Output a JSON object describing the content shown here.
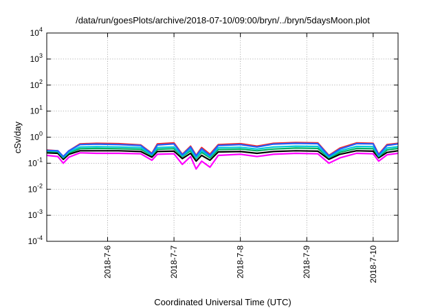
{
  "chart_data": {
    "type": "line",
    "title": "/data/run/goesPlots/archive/2018-07-10/09:00/bryn/../bryn/5daysMoon.plot",
    "xlabel": "Coordinated Universal Time (UTC)",
    "ylabel": "cSv/day",
    "yscale": "log",
    "ylim": [
      0.0001,
      10000
    ],
    "xlim": [
      "2018-07-05T02:00",
      "2018-07-10T09:00"
    ],
    "x_ticks": [
      "2018-7-6",
      "2018-7-7",
      "2018-7-8",
      "2018-7-9",
      "2018-7-10"
    ],
    "y_ticks": [
      {
        "value": 10000,
        "base": "10",
        "exp": "4"
      },
      {
        "value": 1000,
        "base": "10",
        "exp": "3"
      },
      {
        "value": 100,
        "base": "10",
        "exp": "2"
      },
      {
        "value": 10,
        "base": "10",
        "exp": "1"
      },
      {
        "value": 1,
        "base": "10",
        "exp": "0"
      },
      {
        "value": 0.1,
        "base": "10",
        "exp": "-1"
      },
      {
        "value": 0.01,
        "base": "10",
        "exp": "-2"
      },
      {
        "value": 0.001,
        "base": "10",
        "exp": "-3"
      },
      {
        "value": 0.0001,
        "base": "10",
        "exp": "-4"
      }
    ],
    "grid": true,
    "legend": "none",
    "series": [
      {
        "color": "#ff00ff",
        "values": [
          {
            "x": "2018-07-05T02:00",
            "y": 0.2
          },
          {
            "x": "2018-07-05T06:00",
            "y": 0.18
          },
          {
            "x": "2018-07-05T08:00",
            "y": 0.1
          },
          {
            "x": "2018-07-05T10:00",
            "y": 0.17
          },
          {
            "x": "2018-07-05T14:00",
            "y": 0.25
          },
          {
            "x": "2018-07-05T20:00",
            "y": 0.24
          },
          {
            "x": "2018-07-06T04:00",
            "y": 0.24
          },
          {
            "x": "2018-07-06T12:00",
            "y": 0.23
          },
          {
            "x": "2018-07-06T16:00",
            "y": 0.13
          },
          {
            "x": "2018-07-06T18:00",
            "y": 0.22
          },
          {
            "x": "2018-07-07T00:00",
            "y": 0.23
          },
          {
            "x": "2018-07-07T03:00",
            "y": 0.09
          },
          {
            "x": "2018-07-07T06:00",
            "y": 0.18
          },
          {
            "x": "2018-07-07T08:00",
            "y": 0.06
          },
          {
            "x": "2018-07-07T10:00",
            "y": 0.12
          },
          {
            "x": "2018-07-07T13:00",
            "y": 0.07
          },
          {
            "x": "2018-07-07T16:00",
            "y": 0.2
          },
          {
            "x": "2018-07-08T00:00",
            "y": 0.22
          },
          {
            "x": "2018-07-08T06:00",
            "y": 0.18
          },
          {
            "x": "2018-07-08T12:00",
            "y": 0.22
          },
          {
            "x": "2018-07-08T20:00",
            "y": 0.24
          },
          {
            "x": "2018-07-09T04:00",
            "y": 0.23
          },
          {
            "x": "2018-07-09T08:00",
            "y": 0.1
          },
          {
            "x": "2018-07-09T12:00",
            "y": 0.16
          },
          {
            "x": "2018-07-09T18:00",
            "y": 0.24
          },
          {
            "x": "2018-07-10T00:00",
            "y": 0.23
          },
          {
            "x": "2018-07-10T02:00",
            "y": 0.12
          },
          {
            "x": "2018-07-10T05:00",
            "y": 0.21
          },
          {
            "x": "2018-07-10T09:00",
            "y": 0.24
          }
        ]
      },
      {
        "color": "#ff2020",
        "values": [
          {
            "x": "2018-07-05T02:00",
            "y": 0.32
          },
          {
            "x": "2018-07-05T06:00",
            "y": 0.3
          },
          {
            "x": "2018-07-05T08:00",
            "y": 0.18
          },
          {
            "x": "2018-07-05T10:00",
            "y": 0.3
          },
          {
            "x": "2018-07-05T14:00",
            "y": 0.55
          },
          {
            "x": "2018-07-05T20:00",
            "y": 0.58
          },
          {
            "x": "2018-07-06T04:00",
            "y": 0.56
          },
          {
            "x": "2018-07-06T12:00",
            "y": 0.5
          },
          {
            "x": "2018-07-06T16:00",
            "y": 0.24
          },
          {
            "x": "2018-07-06T18:00",
            "y": 0.55
          },
          {
            "x": "2018-07-07T00:00",
            "y": 0.6
          },
          {
            "x": "2018-07-07T03:00",
            "y": 0.22
          },
          {
            "x": "2018-07-07T06:00",
            "y": 0.45
          },
          {
            "x": "2018-07-07T08:00",
            "y": 0.2
          },
          {
            "x": "2018-07-07T10:00",
            "y": 0.4
          },
          {
            "x": "2018-07-07T13:00",
            "y": 0.22
          },
          {
            "x": "2018-07-07T16:00",
            "y": 0.52
          },
          {
            "x": "2018-07-08T00:00",
            "y": 0.56
          },
          {
            "x": "2018-07-08T06:00",
            "y": 0.45
          },
          {
            "x": "2018-07-08T12:00",
            "y": 0.58
          },
          {
            "x": "2018-07-08T20:00",
            "y": 0.62
          },
          {
            "x": "2018-07-09T04:00",
            "y": 0.6
          },
          {
            "x": "2018-07-09T08:00",
            "y": 0.2
          },
          {
            "x": "2018-07-09T12:00",
            "y": 0.38
          },
          {
            "x": "2018-07-09T18:00",
            "y": 0.6
          },
          {
            "x": "2018-07-10T00:00",
            "y": 0.58
          },
          {
            "x": "2018-07-10T02:00",
            "y": 0.22
          },
          {
            "x": "2018-07-10T05:00",
            "y": 0.52
          },
          {
            "x": "2018-07-10T09:00",
            "y": 0.58
          }
        ]
      },
      {
        "color": "#000000",
        "values": [
          {
            "x": "2018-07-05T02:00",
            "y": 0.25
          },
          {
            "x": "2018-07-05T06:00",
            "y": 0.24
          },
          {
            "x": "2018-07-05T08:00",
            "y": 0.14
          },
          {
            "x": "2018-07-05T10:00",
            "y": 0.22
          },
          {
            "x": "2018-07-05T14:00",
            "y": 0.3
          },
          {
            "x": "2018-07-05T20:00",
            "y": 0.3
          },
          {
            "x": "2018-07-06T04:00",
            "y": 0.3
          },
          {
            "x": "2018-07-06T12:00",
            "y": 0.28
          },
          {
            "x": "2018-07-06T16:00",
            "y": 0.17
          },
          {
            "x": "2018-07-06T18:00",
            "y": 0.28
          },
          {
            "x": "2018-07-07T00:00",
            "y": 0.29
          },
          {
            "x": "2018-07-07T03:00",
            "y": 0.15
          },
          {
            "x": "2018-07-07T06:00",
            "y": 0.24
          },
          {
            "x": "2018-07-07T08:00",
            "y": 0.12
          },
          {
            "x": "2018-07-07T10:00",
            "y": 0.2
          },
          {
            "x": "2018-07-07T13:00",
            "y": 0.13
          },
          {
            "x": "2018-07-07T16:00",
            "y": 0.27
          },
          {
            "x": "2018-07-08T00:00",
            "y": 0.28
          },
          {
            "x": "2018-07-08T06:00",
            "y": 0.24
          },
          {
            "x": "2018-07-08T12:00",
            "y": 0.28
          },
          {
            "x": "2018-07-08T20:00",
            "y": 0.3
          },
          {
            "x": "2018-07-09T04:00",
            "y": 0.29
          },
          {
            "x": "2018-07-09T08:00",
            "y": 0.14
          },
          {
            "x": "2018-07-09T12:00",
            "y": 0.22
          },
          {
            "x": "2018-07-09T18:00",
            "y": 0.3
          },
          {
            "x": "2018-07-10T00:00",
            "y": 0.29
          },
          {
            "x": "2018-07-10T02:00",
            "y": 0.16
          },
          {
            "x": "2018-07-10T05:00",
            "y": 0.26
          },
          {
            "x": "2018-07-10T09:00",
            "y": 0.3
          }
        ]
      },
      {
        "color": "#00b060",
        "values": [
          {
            "x": "2018-07-05T02:00",
            "y": 0.28
          },
          {
            "x": "2018-07-05T06:00",
            "y": 0.27
          },
          {
            "x": "2018-07-05T08:00",
            "y": 0.16
          },
          {
            "x": "2018-07-05T10:00",
            "y": 0.25
          },
          {
            "x": "2018-07-05T14:00",
            "y": 0.36
          },
          {
            "x": "2018-07-05T20:00",
            "y": 0.37
          },
          {
            "x": "2018-07-06T04:00",
            "y": 0.36
          },
          {
            "x": "2018-07-06T12:00",
            "y": 0.34
          },
          {
            "x": "2018-07-06T16:00",
            "y": 0.2
          },
          {
            "x": "2018-07-06T18:00",
            "y": 0.34
          },
          {
            "x": "2018-07-07T00:00",
            "y": 0.36
          },
          {
            "x": "2018-07-07T03:00",
            "y": 0.18
          },
          {
            "x": "2018-07-07T06:00",
            "y": 0.3
          },
          {
            "x": "2018-07-07T08:00",
            "y": 0.15
          },
          {
            "x": "2018-07-07T10:00",
            "y": 0.26
          },
          {
            "x": "2018-07-07T13:00",
            "y": 0.16
          },
          {
            "x": "2018-07-07T16:00",
            "y": 0.33
          },
          {
            "x": "2018-07-08T00:00",
            "y": 0.35
          },
          {
            "x": "2018-07-08T06:00",
            "y": 0.3
          },
          {
            "x": "2018-07-08T12:00",
            "y": 0.35
          },
          {
            "x": "2018-07-08T20:00",
            "y": 0.38
          },
          {
            "x": "2018-07-09T04:00",
            "y": 0.37
          },
          {
            "x": "2018-07-09T08:00",
            "y": 0.16
          },
          {
            "x": "2018-07-09T12:00",
            "y": 0.26
          },
          {
            "x": "2018-07-09T18:00",
            "y": 0.37
          },
          {
            "x": "2018-07-10T00:00",
            "y": 0.36
          },
          {
            "x": "2018-07-10T02:00",
            "y": 0.18
          },
          {
            "x": "2018-07-10T05:00",
            "y": 0.32
          },
          {
            "x": "2018-07-10T09:00",
            "y": 0.37
          }
        ]
      },
      {
        "color": "#00c8d8",
        "values": [
          {
            "x": "2018-07-05T02:00",
            "y": 0.3
          },
          {
            "x": "2018-07-05T06:00",
            "y": 0.29
          },
          {
            "x": "2018-07-05T08:00",
            "y": 0.17
          },
          {
            "x": "2018-07-05T10:00",
            "y": 0.27
          },
          {
            "x": "2018-07-05T14:00",
            "y": 0.42
          },
          {
            "x": "2018-07-05T20:00",
            "y": 0.43
          },
          {
            "x": "2018-07-06T04:00",
            "y": 0.42
          },
          {
            "x": "2018-07-06T12:00",
            "y": 0.4
          },
          {
            "x": "2018-07-06T16:00",
            "y": 0.21
          },
          {
            "x": "2018-07-06T18:00",
            "y": 0.4
          },
          {
            "x": "2018-07-07T00:00",
            "y": 0.42
          },
          {
            "x": "2018-07-07T03:00",
            "y": 0.19
          },
          {
            "x": "2018-07-07T06:00",
            "y": 0.35
          },
          {
            "x": "2018-07-07T08:00",
            "y": 0.16
          },
          {
            "x": "2018-07-07T10:00",
            "y": 0.3
          },
          {
            "x": "2018-07-07T13:00",
            "y": 0.18
          },
          {
            "x": "2018-07-07T16:00",
            "y": 0.39
          },
          {
            "x": "2018-07-08T00:00",
            "y": 0.41
          },
          {
            "x": "2018-07-08T06:00",
            "y": 0.35
          },
          {
            "x": "2018-07-08T12:00",
            "y": 0.42
          },
          {
            "x": "2018-07-08T20:00",
            "y": 0.45
          },
          {
            "x": "2018-07-09T04:00",
            "y": 0.44
          },
          {
            "x": "2018-07-09T08:00",
            "y": 0.17
          },
          {
            "x": "2018-07-09T12:00",
            "y": 0.3
          },
          {
            "x": "2018-07-09T18:00",
            "y": 0.44
          },
          {
            "x": "2018-07-10T00:00",
            "y": 0.43
          },
          {
            "x": "2018-07-10T02:00",
            "y": 0.19
          },
          {
            "x": "2018-07-10T05:00",
            "y": 0.38
          },
          {
            "x": "2018-07-10T09:00",
            "y": 0.43
          }
        ]
      },
      {
        "color": "#2060ff",
        "values": [
          {
            "x": "2018-07-05T02:00",
            "y": 0.31
          },
          {
            "x": "2018-07-05T06:00",
            "y": 0.3
          },
          {
            "x": "2018-07-05T08:00",
            "y": 0.18
          },
          {
            "x": "2018-07-05T10:00",
            "y": 0.3
          },
          {
            "x": "2018-07-05T14:00",
            "y": 0.52
          },
          {
            "x": "2018-07-05T20:00",
            "y": 0.54
          },
          {
            "x": "2018-07-06T04:00",
            "y": 0.52
          },
          {
            "x": "2018-07-06T12:00",
            "y": 0.48
          },
          {
            "x": "2018-07-06T16:00",
            "y": 0.23
          },
          {
            "x": "2018-07-06T18:00",
            "y": 0.5
          },
          {
            "x": "2018-07-07T00:00",
            "y": 0.55
          },
          {
            "x": "2018-07-07T03:00",
            "y": 0.21
          },
          {
            "x": "2018-07-07T06:00",
            "y": 0.42
          },
          {
            "x": "2018-07-07T08:00",
            "y": 0.19
          },
          {
            "x": "2018-07-07T10:00",
            "y": 0.36
          },
          {
            "x": "2018-07-07T13:00",
            "y": 0.2
          },
          {
            "x": "2018-07-07T16:00",
            "y": 0.48
          },
          {
            "x": "2018-07-08T00:00",
            "y": 0.52
          },
          {
            "x": "2018-07-08T06:00",
            "y": 0.42
          },
          {
            "x": "2018-07-08T12:00",
            "y": 0.54
          },
          {
            "x": "2018-07-08T20:00",
            "y": 0.58
          },
          {
            "x": "2018-07-09T04:00",
            "y": 0.56
          },
          {
            "x": "2018-07-09T08:00",
            "y": 0.19
          },
          {
            "x": "2018-07-09T12:00",
            "y": 0.35
          },
          {
            "x": "2018-07-09T18:00",
            "y": 0.56
          },
          {
            "x": "2018-07-10T00:00",
            "y": 0.55
          },
          {
            "x": "2018-07-10T02:00",
            "y": 0.21
          },
          {
            "x": "2018-07-10T05:00",
            "y": 0.48
          },
          {
            "x": "2018-07-10T09:00",
            "y": 0.55
          }
        ]
      }
    ]
  }
}
